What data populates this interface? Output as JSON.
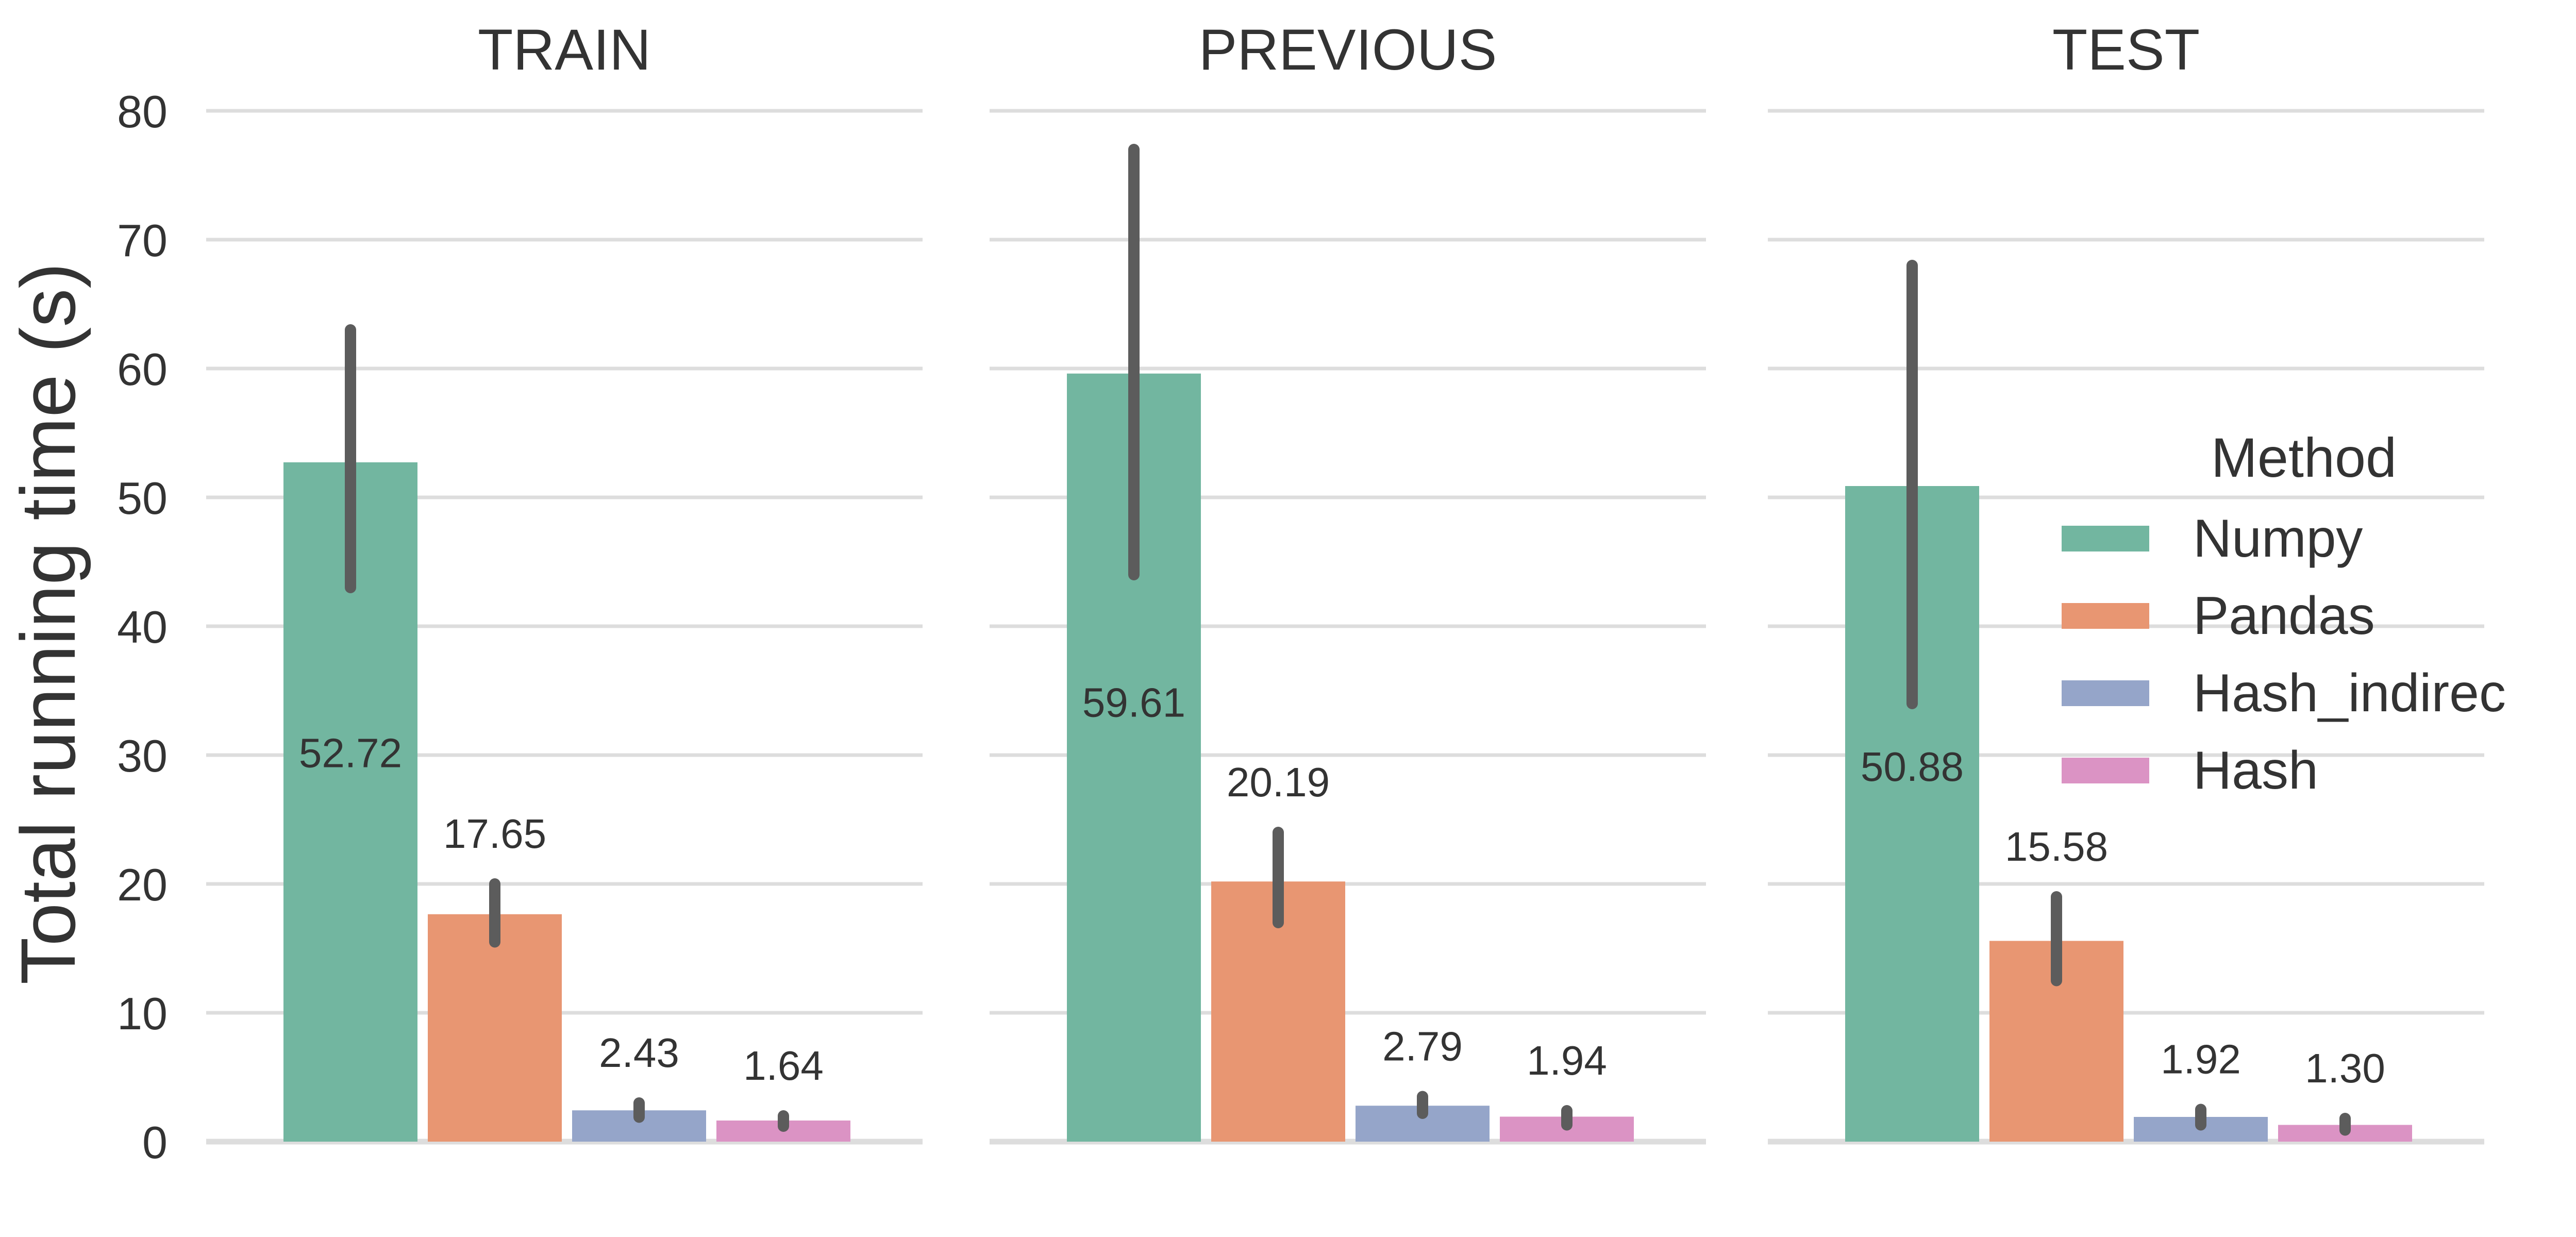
{
  "chart_data": {
    "type": "bar",
    "ylabel": "Total running time (s)",
    "ylim": [
      0,
      80
    ],
    "yticks": [
      0,
      10,
      20,
      30,
      40,
      50,
      60,
      70,
      80
    ],
    "grid": true,
    "legend": {
      "title": "Method",
      "placement": "right",
      "entries": [
        "Numpy",
        "Pandas",
        "Hash_indirec",
        "Hash"
      ]
    },
    "colors": {
      "Numpy": "#72b6a0",
      "Pandas": "#e89672",
      "Hash_indirec": "#95a5c9",
      "Hash": "#db93c4",
      "error_bar": "#5c5c5c",
      "grid": "#dddddd",
      "text": "#333333"
    },
    "panels": [
      {
        "title": "TRAIN",
        "series": [
          {
            "name": "Numpy",
            "value": 52.72,
            "label": "52.72",
            "ci": [
              43,
              63
            ]
          },
          {
            "name": "Pandas",
            "value": 17.65,
            "label": "17.65",
            "ci": [
              15.5,
              20
            ]
          },
          {
            "name": "Hash_indirec",
            "value": 2.43,
            "label": "2.43",
            "ci": [
              1.9,
              3.0
            ]
          },
          {
            "name": "Hash",
            "value": 1.64,
            "label": "1.64",
            "ci": [
              1.2,
              2.0
            ]
          }
        ]
      },
      {
        "title": "PREVIOUS",
        "series": [
          {
            "name": "Numpy",
            "value": 59.61,
            "label": "59.61",
            "ci": [
              44,
              77
            ]
          },
          {
            "name": "Pandas",
            "value": 20.19,
            "label": "20.19",
            "ci": [
              17,
              24
            ]
          },
          {
            "name": "Hash_indirec",
            "value": 2.79,
            "label": "2.79",
            "ci": [
              2.2,
              3.5
            ]
          },
          {
            "name": "Hash",
            "value": 1.94,
            "label": "1.94",
            "ci": [
              1.3,
              2.4
            ]
          }
        ]
      },
      {
        "title": "TEST",
        "series": [
          {
            "name": "Numpy",
            "value": 50.88,
            "label": "50.88",
            "ci": [
              34,
              68
            ]
          },
          {
            "name": "Pandas",
            "value": 15.58,
            "label": "15.58",
            "ci": [
              12.5,
              19
            ]
          },
          {
            "name": "Hash_indirec",
            "value": 1.92,
            "label": "1.92",
            "ci": [
              1.3,
              2.5
            ]
          },
          {
            "name": "Hash",
            "value": 1.3,
            "label": "1.30",
            "ci": [
              0.9,
              1.8
            ]
          }
        ]
      }
    ]
  }
}
